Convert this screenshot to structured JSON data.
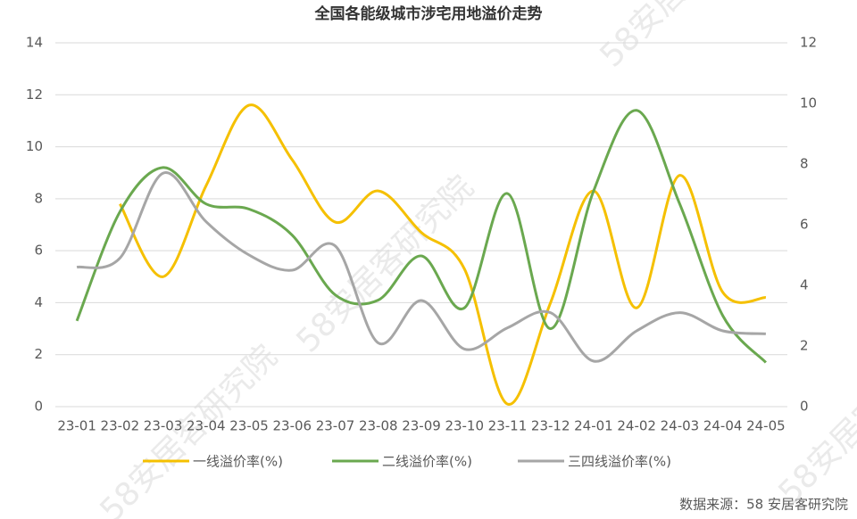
{
  "chart_data": {
    "type": "line",
    "title": "全国各能级城市涉宅用地溢价走势",
    "categories": [
      "23-01",
      "23-02",
      "23-03",
      "23-04",
      "23-05",
      "23-06",
      "23-07",
      "23-08",
      "23-09",
      "23-10",
      "23-11",
      "23-12",
      "24-01",
      "24-02",
      "24-03",
      "24-04",
      "24-05"
    ],
    "series": [
      {
        "name": "一线溢价率(%)",
        "color": "#f5c000",
        "values": [
          null,
          7.8,
          5.0,
          8.5,
          11.6,
          9.5,
          7.1,
          8.3,
          6.7,
          5.3,
          0.1,
          4.0,
          8.3,
          3.8,
          8.9,
          4.4,
          4.2
        ]
      },
      {
        "name": "二线溢价率(%)",
        "color": "#6aa84f",
        "values": [
          3.3,
          7.5,
          9.2,
          7.8,
          7.6,
          6.6,
          4.3,
          4.1,
          5.8,
          3.8,
          8.2,
          3.0,
          8.3,
          11.4,
          7.8,
          3.5,
          1.7
        ]
      },
      {
        "name": "三四线溢价率(%)",
        "color": "#a6a6a6",
        "axis": "y2",
        "values": [
          4.6,
          4.9,
          7.7,
          6.1,
          5.0,
          4.5,
          5.3,
          2.1,
          3.5,
          1.9,
          2.6,
          3.1,
          1.5,
          2.5,
          3.1,
          2.5,
          2.4
        ]
      }
    ],
    "ylim": [
      0,
      14
    ],
    "yticks": [
      0,
      2,
      4,
      6,
      8,
      10,
      12,
      14
    ],
    "y2lim": [
      0,
      12
    ],
    "y2ticks": [
      0,
      2,
      4,
      6,
      8,
      10,
      12
    ],
    "grid": true,
    "legend": "bottom",
    "source": "数据来源：58 安居客研究院",
    "watermark": "58安居客研究院"
  }
}
